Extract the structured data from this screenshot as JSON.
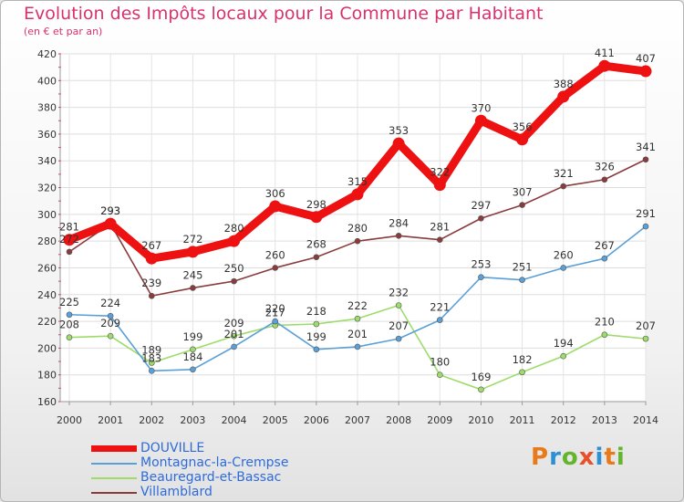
{
  "header": {
    "title": "Evolution des Impôts locaux pour la Commune par Habitant",
    "subtitle": "(en € et par an)"
  },
  "brand": {
    "text": "Proxiti",
    "letter_colors": [
      "#e87a1a",
      "#2d8fd6",
      "#63b52b",
      "#e8502a",
      "#2d8fd6",
      "#e87a1a",
      "#63b52b"
    ]
  },
  "chart_data": {
    "type": "line",
    "title": "Evolution des Impôts locaux pour la Commune par Habitant",
    "subtitle": "(en € et par an)",
    "xlabel": "",
    "ylabel": "",
    "ylim": [
      160,
      420
    ],
    "yticks": [
      160,
      180,
      200,
      220,
      240,
      260,
      280,
      300,
      320,
      340,
      360,
      380,
      400,
      420
    ],
    "x": [
      "2000",
      "2001",
      "2002",
      "2003",
      "2004",
      "2005",
      "2006",
      "2007",
      "2008",
      "2009",
      "2010",
      "2011",
      "2012",
      "2013",
      "2014"
    ],
    "grid": true,
    "legend_position": "bottom-left",
    "series": [
      {
        "name": "DOUVILLE",
        "color": "#ee1111",
        "values": [
          281,
          293,
          267,
          272,
          280,
          306,
          298,
          315,
          353,
          322,
          370,
          356,
          388,
          411,
          407
        ]
      },
      {
        "name": "Montagnac-la-Crempse",
        "color": "#5aa0d8",
        "values": [
          225,
          224,
          183,
          184,
          201,
          220,
          199,
          201,
          207,
          221,
          253,
          251,
          260,
          267,
          291
        ]
      },
      {
        "name": "Beauregard-et-Bassac",
        "color": "#9ddc6a",
        "values": [
          208,
          209,
          189,
          199,
          209,
          217,
          218,
          222,
          232,
          180,
          169,
          182,
          194,
          210,
          207
        ]
      },
      {
        "name": "Villamblard",
        "color": "#8a3b3b",
        "values": [
          272,
          293,
          239,
          245,
          250,
          260,
          268,
          280,
          284,
          281,
          297,
          307,
          321,
          326,
          341
        ]
      }
    ]
  }
}
